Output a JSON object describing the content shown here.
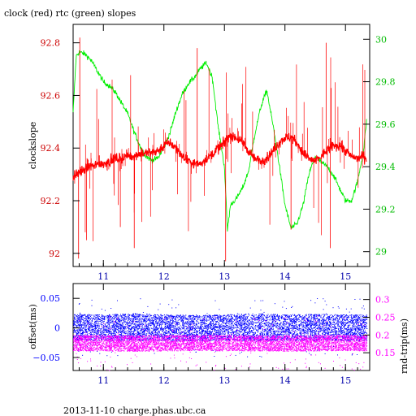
{
  "chart_data": [
    {
      "type": "line",
      "title": "clock (red) rtc (green) slopes",
      "xlabel": "",
      "ylabel": "clockslope",
      "y2label": "",
      "xlim": [
        10.5,
        15.4
      ],
      "ylim": [
        91.95,
        92.87
      ],
      "y2lim": [
        28.93,
        30.07
      ],
      "grid": false,
      "x_ticks": [
        {
          "value": 11,
          "label": "11"
        },
        {
          "value": 12,
          "label": "12"
        },
        {
          "value": 13,
          "label": "13"
        },
        {
          "value": 14,
          "label": "14"
        },
        {
          "value": 15,
          "label": "15"
        }
      ],
      "y_ticks": [
        {
          "value": 92.0,
          "label": "92"
        },
        {
          "value": 92.2,
          "label": "92.2"
        },
        {
          "value": 92.4,
          "label": "92.4"
        },
        {
          "value": 92.6,
          "label": "92.6"
        },
        {
          "value": 92.8,
          "label": "92.8"
        }
      ],
      "y2_ticks": [
        {
          "value": 29.0,
          "label": "29"
        },
        {
          "value": 29.2,
          "label": "29.2"
        },
        {
          "value": 29.4,
          "label": "29.4"
        },
        {
          "value": 29.6,
          "label": "29.6"
        },
        {
          "value": 29.8,
          "label": "29.8"
        },
        {
          "value": 30.0,
          "label": "30"
        }
      ],
      "series": [
        {
          "color": "#ff0000",
          "axis": "left",
          "x": [
            10.5,
            10.6,
            10.7,
            10.8,
            10.9,
            11.0,
            11.1,
            11.2,
            11.3,
            11.4,
            11.5,
            11.6,
            11.7,
            11.8,
            11.9,
            12.0,
            12.1,
            12.2,
            12.3,
            12.4,
            12.5,
            12.6,
            12.7,
            12.8,
            12.9,
            13.0,
            13.1,
            13.2,
            13.3,
            13.4,
            13.5,
            13.6,
            13.7,
            13.8,
            13.9,
            14.0,
            14.1,
            14.2,
            14.3,
            14.4,
            14.5,
            14.6,
            14.7,
            14.8,
            14.9,
            15.0,
            15.1,
            15.2,
            15.3,
            15.35
          ],
          "y": [
            92.29,
            92.31,
            92.32,
            92.33,
            92.34,
            92.34,
            92.35,
            92.36,
            92.36,
            92.37,
            92.37,
            92.38,
            92.38,
            92.38,
            92.39,
            92.41,
            92.42,
            92.4,
            92.37,
            92.35,
            92.34,
            92.34,
            92.36,
            92.38,
            92.4,
            92.42,
            92.45,
            92.44,
            92.42,
            92.39,
            92.36,
            92.35,
            92.36,
            92.39,
            92.42,
            92.44,
            92.44,
            92.42,
            92.38,
            92.36,
            92.35,
            92.37,
            92.39,
            92.41,
            92.41,
            92.39,
            92.37,
            92.36,
            92.37,
            92.36
          ]
        },
        {
          "color": "#00ee00",
          "axis": "right",
          "x": [
            10.5,
            10.55,
            10.6,
            10.7,
            10.8,
            10.9,
            11.0,
            11.1,
            11.2,
            11.3,
            11.4,
            11.5,
            11.6,
            11.7,
            11.8,
            11.9,
            12.0,
            12.1,
            12.2,
            12.3,
            12.4,
            12.5,
            12.6,
            12.7,
            12.8,
            12.9,
            13.0,
            13.05,
            13.1,
            13.2,
            13.3,
            13.4,
            13.5,
            13.6,
            13.7,
            13.8,
            13.9,
            14.0,
            14.1,
            14.2,
            14.3,
            14.4,
            14.5,
            14.6,
            14.7,
            14.8,
            14.9,
            15.0,
            15.1,
            15.2,
            15.3,
            15.35
          ],
          "y": [
            29.65,
            29.92,
            29.94,
            29.93,
            29.9,
            29.85,
            29.8,
            29.78,
            29.75,
            29.7,
            29.65,
            29.57,
            29.5,
            29.45,
            29.43,
            29.44,
            29.49,
            29.56,
            29.66,
            29.74,
            29.79,
            29.82,
            29.86,
            29.89,
            29.82,
            29.58,
            29.4,
            29.1,
            29.22,
            29.25,
            29.3,
            29.38,
            29.55,
            29.68,
            29.76,
            29.6,
            29.42,
            29.22,
            29.11,
            29.13,
            29.22,
            29.37,
            29.45,
            29.42,
            29.4,
            29.36,
            29.3,
            29.24,
            29.24,
            29.33,
            29.48,
            29.62
          ]
        }
      ]
    },
    {
      "type": "scatter",
      "title": "",
      "xlabel": "2013-11-10 charge.phas.ubc.ca",
      "ylabel": "offset(ms)",
      "y2label": "rnd-trip(ms)",
      "xlim": [
        10.5,
        15.4
      ],
      "ylim": [
        -0.072,
        0.075
      ],
      "y2lim": [
        0.1,
        0.345
      ],
      "grid": false,
      "x_ticks": [
        {
          "value": 11,
          "label": "11"
        },
        {
          "value": 12,
          "label": "12"
        },
        {
          "value": 13,
          "label": "13"
        },
        {
          "value": 14,
          "label": "14"
        },
        {
          "value": 15,
          "label": "15"
        }
      ],
      "y_ticks": [
        {
          "value": -0.05,
          "label": "−0.05"
        },
        {
          "value": 0,
          "label": "0"
        },
        {
          "value": 0.05,
          "label": "0.05"
        }
      ],
      "y2_ticks": [
        {
          "value": 0.15,
          "label": "0.15"
        },
        {
          "value": 0.2,
          "label": "0.2"
        },
        {
          "value": 0.25,
          "label": "0.25"
        },
        {
          "value": 0.3,
          "label": "0.3"
        }
      ],
      "series": [
        {
          "color": "#0000ff",
          "axis": "left",
          "x": [
            10.5,
            11.0,
            11.5,
            12.0,
            12.5,
            13.0,
            13.5,
            14.0,
            14.5,
            15.0,
            15.35
          ],
          "y": [
            0.002,
            0.001,
            0.002,
            0.001,
            0.0,
            0.001,
            0.002,
            0.001,
            0.002,
            0.001,
            0.001
          ],
          "spread": [
            0.022,
            0.022,
            0.023,
            0.022,
            0.022,
            0.022,
            0.023,
            0.022,
            0.022,
            0.022,
            0.022
          ]
        },
        {
          "color": "#ff00ff",
          "axis": "right",
          "x": [
            10.5,
            11.0,
            11.5,
            12.0,
            12.5,
            13.0,
            13.5,
            14.0,
            14.5,
            15.0,
            15.35
          ],
          "y": [
            0.178,
            0.178,
            0.177,
            0.178,
            0.179,
            0.178,
            0.178,
            0.177,
            0.178,
            0.179,
            0.178
          ],
          "spread": [
            0.022,
            0.022,
            0.022,
            0.022,
            0.022,
            0.022,
            0.022,
            0.022,
            0.022,
            0.022,
            0.022
          ]
        }
      ]
    }
  ],
  "colors": {
    "left_axis_top": "#cc0000",
    "right_axis_top": "#00bb00",
    "left_axis_bottom": "#0000ff",
    "right_axis_bottom": "#ff00ff",
    "x_axis": "#0000aa",
    "frame": "#000000"
  }
}
